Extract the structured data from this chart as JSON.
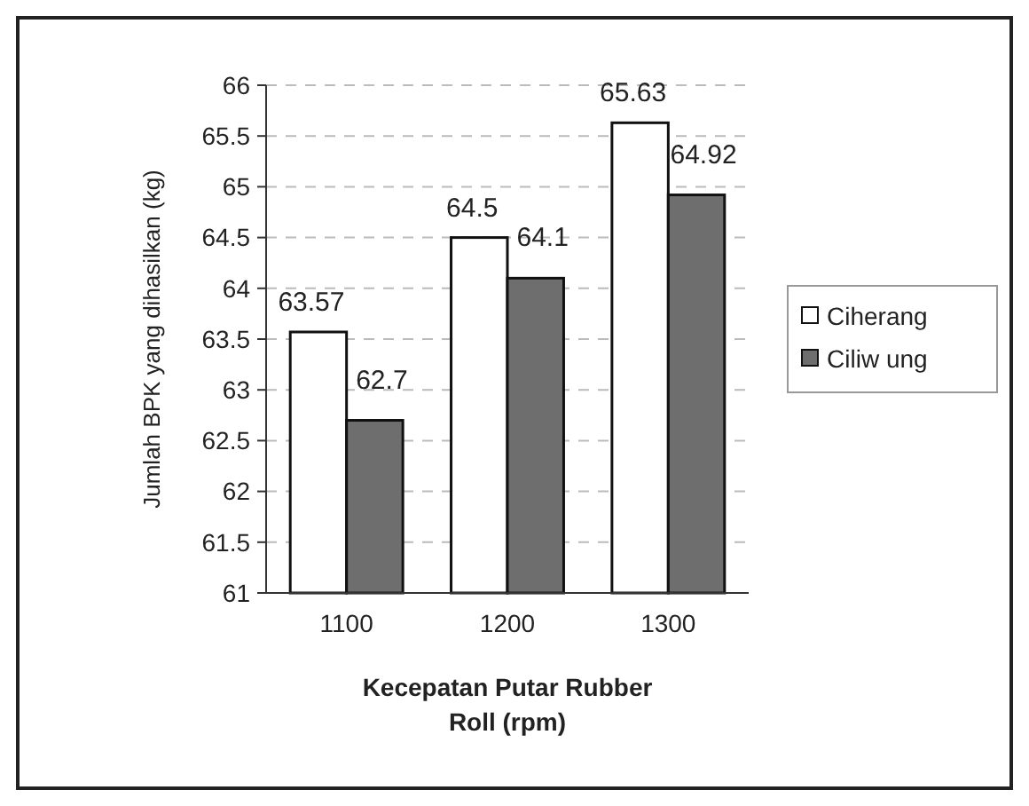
{
  "chart_data": {
    "type": "bar",
    "categories": [
      "1100",
      "1200",
      "1300"
    ],
    "series": [
      {
        "name": "Ciherang",
        "color": "#ffffff",
        "values": [
          63.57,
          64.5,
          65.63
        ]
      },
      {
        "name": "Ciliw ung",
        "color": "#6e6e6e",
        "values": [
          62.7,
          64.1,
          64.92
        ]
      }
    ],
    "ylim": [
      61,
      66
    ],
    "yticks": [
      61,
      61.5,
      62,
      62.5,
      63,
      63.5,
      64,
      64.5,
      65,
      65.5,
      66
    ],
    "xlabel": "Kecepatan Putar Rubber Roll (rpm)",
    "ylabel": "Jumlah BPK yang dihasilkan (kg)",
    "grid": "y",
    "legend": "right",
    "data_labels": true
  }
}
